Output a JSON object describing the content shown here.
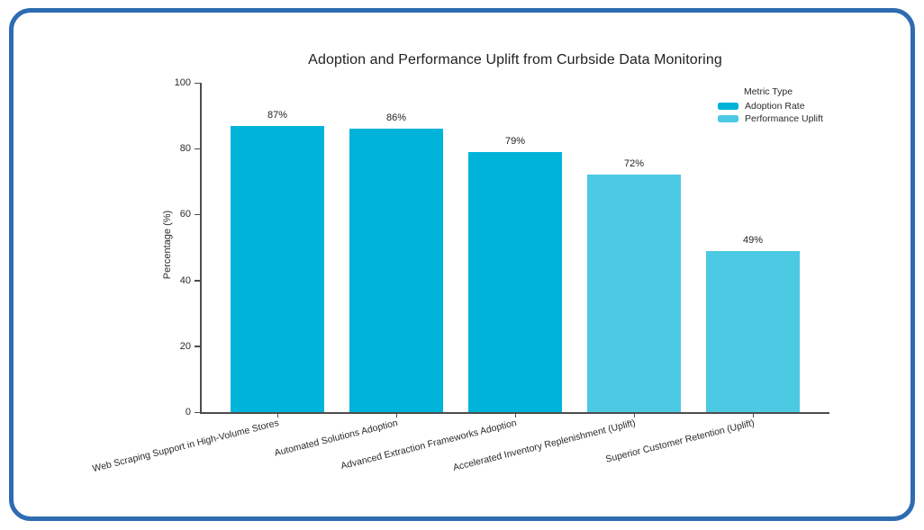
{
  "frame": {
    "border_color": "#2e6cb2"
  },
  "chart_data": {
    "type": "bar",
    "title": "Adoption and Performance Uplift from Curbside Data Monitoring",
    "xlabel": "",
    "ylabel": "Percentage (%)",
    "ylim": [
      0,
      100
    ],
    "yticks": [
      0,
      20,
      40,
      60,
      80,
      100
    ],
    "grid": false,
    "legend_position": "upper right",
    "legend_title": "Metric Type",
    "series": [
      {
        "name": "Adoption Rate",
        "color": "#00b3d9"
      },
      {
        "name": "Performance Uplift",
        "color": "#4cc9e3"
      }
    ],
    "categories": [
      "Web Scraping Support in High-Volume Stores",
      "Automated Solutions Adoption",
      "Advanced Extraction Frameworks Adoption",
      "Accelerated Inventory Replenishment (Uplift)",
      "Superior Customer Retention (Uplift)"
    ],
    "values": [
      87,
      86,
      79,
      72,
      49
    ],
    "value_labels": [
      "87%",
      "86%",
      "79%",
      "72%",
      "49%"
    ],
    "bar_series_index": [
      0,
      0,
      0,
      1,
      1
    ]
  }
}
